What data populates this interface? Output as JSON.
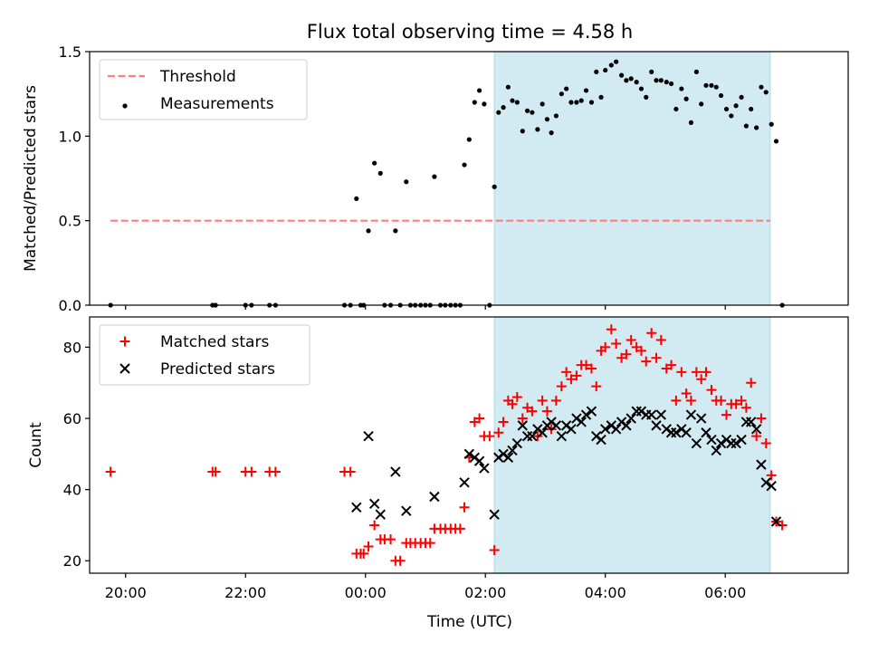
{
  "figure": {
    "title": "Flux total observing time = 4.58 h"
  },
  "chart_data": [
    {
      "type": "scatter",
      "ylabel": "Matched/Predicted stars",
      "xlim": [
        19.4,
        8.05
      ],
      "ylim": [
        0,
        1.5
      ],
      "yticks": [
        0.0,
        0.5,
        1.0,
        1.5
      ],
      "shaded_region": [
        2.15,
        6.75
      ],
      "threshold": {
        "value": 0.5,
        "x_range": [
          19.75,
          6.75
        ],
        "color": "#ff7f7f"
      },
      "legend": {
        "position": "top-left",
        "entries": [
          "Threshold",
          "Measurements"
        ]
      },
      "series": [
        {
          "name": "Measurements",
          "marker": "dot",
          "color": "#000000",
          "points": [
            [
              19.75,
              0.0
            ],
            [
              21.45,
              0.0
            ],
            [
              21.5,
              0.0
            ],
            [
              22.0,
              0.0
            ],
            [
              22.1,
              0.0
            ],
            [
              22.4,
              0.0
            ],
            [
              22.5,
              0.0
            ],
            [
              23.65,
              0.0
            ],
            [
              23.75,
              0.0
            ],
            [
              23.85,
              0.63
            ],
            [
              23.92,
              0.0
            ],
            [
              23.97,
              0.0
            ],
            [
              24.05,
              0.44
            ],
            [
              24.15,
              0.84
            ],
            [
              24.25,
              0.78
            ],
            [
              24.32,
              0.0
            ],
            [
              24.42,
              0.0
            ],
            [
              24.5,
              0.44
            ],
            [
              24.58,
              0.0
            ],
            [
              24.68,
              0.73
            ],
            [
              24.75,
              0.0
            ],
            [
              24.83,
              0.0
            ],
            [
              24.92,
              0.0
            ],
            [
              25.0,
              0.0
            ],
            [
              25.08,
              0.0
            ],
            [
              25.15,
              0.76
            ],
            [
              25.25,
              0.0
            ],
            [
              25.33,
              0.0
            ],
            [
              25.42,
              0.0
            ],
            [
              25.5,
              0.0
            ],
            [
              25.58,
              0.0
            ],
            [
              25.65,
              0.83
            ],
            [
              25.73,
              0.98
            ],
            [
              25.82,
              1.2
            ],
            [
              25.9,
              1.27
            ],
            [
              25.98,
              1.19
            ],
            [
              26.07,
              0.0
            ],
            [
              26.15,
              0.7
            ],
            [
              26.22,
              1.14
            ],
            [
              26.3,
              1.17
            ],
            [
              26.38,
              1.29
            ],
            [
              26.45,
              1.21
            ],
            [
              26.53,
              1.2
            ],
            [
              26.62,
              1.03
            ],
            [
              26.7,
              1.15
            ],
            [
              26.78,
              1.14
            ],
            [
              26.87,
              1.04
            ],
            [
              26.95,
              1.19
            ],
            [
              27.03,
              1.1
            ],
            [
              27.1,
              1.02
            ],
            [
              27.18,
              1.12
            ],
            [
              27.27,
              1.25
            ],
            [
              27.35,
              1.28
            ],
            [
              27.43,
              1.2
            ],
            [
              27.52,
              1.2
            ],
            [
              27.6,
              1.21
            ],
            [
              27.68,
              1.27
            ],
            [
              27.77,
              1.2
            ],
            [
              27.85,
              1.38
            ],
            [
              27.93,
              1.23
            ],
            [
              28.0,
              1.39
            ],
            [
              28.1,
              1.42
            ],
            [
              28.18,
              1.44
            ],
            [
              28.27,
              1.36
            ],
            [
              28.35,
              1.33
            ],
            [
              28.43,
              1.34
            ],
            [
              28.52,
              1.32
            ],
            [
              28.6,
              1.28
            ],
            [
              28.68,
              1.23
            ],
            [
              28.77,
              1.38
            ],
            [
              28.85,
              1.33
            ],
            [
              28.93,
              1.33
            ],
            [
              29.02,
              1.32
            ],
            [
              29.1,
              1.31
            ],
            [
              29.18,
              1.16
            ],
            [
              29.27,
              1.28
            ],
            [
              29.35,
              1.22
            ],
            [
              29.43,
              1.08
            ],
            [
              29.52,
              1.38
            ],
            [
              29.6,
              1.19
            ],
            [
              29.68,
              1.3
            ],
            [
              29.77,
              1.3
            ],
            [
              29.85,
              1.29
            ],
            [
              29.93,
              1.24
            ],
            [
              30.02,
              1.16
            ],
            [
              30.1,
              1.12
            ],
            [
              30.18,
              1.18
            ],
            [
              30.27,
              1.23
            ],
            [
              30.35,
              1.06
            ],
            [
              30.43,
              1.16
            ],
            [
              30.52,
              1.05
            ],
            [
              30.6,
              1.29
            ],
            [
              30.68,
              1.26
            ],
            [
              30.77,
              1.07
            ],
            [
              30.85,
              0.97
            ],
            [
              30.95,
              0.0
            ]
          ]
        }
      ]
    },
    {
      "type": "scatter",
      "xlabel": "Time (UTC)",
      "ylabel": "Count",
      "xlim": [
        19.4,
        8.05
      ],
      "ylim": [
        16.5,
        88.5
      ],
      "yticks": [
        20,
        40,
        60,
        80
      ],
      "xticks": [
        "20:00",
        "22:00",
        "00:00",
        "02:00",
        "04:00",
        "06:00"
      ],
      "xtick_values": [
        20,
        22,
        24,
        26,
        28,
        30
      ],
      "shaded_region": [
        2.15,
        6.75
      ],
      "legend": {
        "position": "top-left",
        "entries": [
          "Matched stars",
          "Predicted stars"
        ]
      },
      "series": [
        {
          "name": "Matched stars",
          "marker": "plus",
          "color": "#ff0000",
          "points": [
            [
              19.75,
              45
            ],
            [
              21.45,
              45
            ],
            [
              21.5,
              45
            ],
            [
              22.0,
              45
            ],
            [
              22.1,
              45
            ],
            [
              22.4,
              45
            ],
            [
              22.5,
              45
            ],
            [
              23.65,
              45
            ],
            [
              23.75,
              45
            ],
            [
              23.85,
              22
            ],
            [
              23.92,
              22
            ],
            [
              23.97,
              22
            ],
            [
              24.05,
              24
            ],
            [
              24.15,
              30
            ],
            [
              24.25,
              26
            ],
            [
              24.32,
              26
            ],
            [
              24.42,
              26
            ],
            [
              24.5,
              20
            ],
            [
              24.58,
              20
            ],
            [
              24.68,
              25
            ],
            [
              24.75,
              25
            ],
            [
              24.83,
              25
            ],
            [
              24.92,
              25
            ],
            [
              25.0,
              25
            ],
            [
              25.08,
              25
            ],
            [
              25.15,
              29
            ],
            [
              25.25,
              29
            ],
            [
              25.33,
              29
            ],
            [
              25.42,
              29
            ],
            [
              25.5,
              29
            ],
            [
              25.58,
              29
            ],
            [
              25.65,
              35
            ],
            [
              25.73,
              49
            ],
            [
              25.82,
              59
            ],
            [
              25.9,
              60
            ],
            [
              25.98,
              55
            ],
            [
              26.07,
              55
            ],
            [
              26.15,
              23
            ],
            [
              26.22,
              56
            ],
            [
              26.3,
              59
            ],
            [
              26.38,
              65
            ],
            [
              26.45,
              64
            ],
            [
              26.53,
              66
            ],
            [
              26.62,
              60
            ],
            [
              26.7,
              63
            ],
            [
              26.78,
              62
            ],
            [
              26.87,
              55
            ],
            [
              26.95,
              65
            ],
            [
              27.03,
              62
            ],
            [
              27.1,
              57
            ],
            [
              27.18,
              65
            ],
            [
              27.27,
              69
            ],
            [
              27.35,
              73
            ],
            [
              27.43,
              71
            ],
            [
              27.52,
              72
            ],
            [
              27.6,
              75
            ],
            [
              27.68,
              75
            ],
            [
              27.77,
              74
            ],
            [
              27.85,
              69
            ],
            [
              27.93,
              79
            ],
            [
              28.0,
              80
            ],
            [
              28.1,
              85
            ],
            [
              28.18,
              81
            ],
            [
              28.27,
              77
            ],
            [
              28.35,
              78
            ],
            [
              28.43,
              82
            ],
            [
              28.52,
              80
            ],
            [
              28.6,
              79
            ],
            [
              28.68,
              76
            ],
            [
              28.77,
              84
            ],
            [
              28.85,
              77
            ],
            [
              28.93,
              82
            ],
            [
              29.02,
              74
            ],
            [
              29.1,
              75
            ],
            [
              29.18,
              65
            ],
            [
              29.27,
              73
            ],
            [
              29.35,
              67
            ],
            [
              29.43,
              65
            ],
            [
              29.52,
              73
            ],
            [
              29.6,
              71
            ],
            [
              29.68,
              73
            ],
            [
              29.77,
              68
            ],
            [
              29.85,
              65
            ],
            [
              29.93,
              65
            ],
            [
              30.02,
              61
            ],
            [
              30.1,
              64
            ],
            [
              30.18,
              64
            ],
            [
              30.27,
              65
            ],
            [
              30.35,
              63
            ],
            [
              30.43,
              70
            ],
            [
              30.52,
              55
            ],
            [
              30.6,
              60
            ],
            [
              30.68,
              53
            ],
            [
              30.77,
              44
            ],
            [
              30.85,
              31
            ],
            [
              30.95,
              30
            ]
          ]
        },
        {
          "name": "Predicted stars",
          "marker": "cross",
          "color": "#000000",
          "points": [
            [
              23.85,
              35
            ],
            [
              24.05,
              55
            ],
            [
              24.15,
              36
            ],
            [
              24.25,
              33
            ],
            [
              24.5,
              45
            ],
            [
              24.68,
              34
            ],
            [
              25.15,
              38
            ],
            [
              25.65,
              42
            ],
            [
              25.73,
              50
            ],
            [
              25.82,
              49
            ],
            [
              25.9,
              48
            ],
            [
              25.98,
              46
            ],
            [
              26.15,
              33
            ],
            [
              26.22,
              49
            ],
            [
              26.3,
              50
            ],
            [
              26.38,
              49
            ],
            [
              26.45,
              51
            ],
            [
              26.53,
              53
            ],
            [
              26.62,
              58
            ],
            [
              26.7,
              55
            ],
            [
              26.78,
              55
            ],
            [
              26.87,
              57
            ],
            [
              26.95,
              56
            ],
            [
              27.03,
              58
            ],
            [
              27.1,
              59
            ],
            [
              27.18,
              58
            ],
            [
              27.27,
              55
            ],
            [
              27.35,
              58
            ],
            [
              27.43,
              57
            ],
            [
              27.52,
              60
            ],
            [
              27.6,
              59
            ],
            [
              27.68,
              61
            ],
            [
              27.77,
              62
            ],
            [
              27.85,
              55
            ],
            [
              27.93,
              54
            ],
            [
              28.0,
              57
            ],
            [
              28.1,
              58
            ],
            [
              28.18,
              57
            ],
            [
              28.27,
              59
            ],
            [
              28.35,
              58
            ],
            [
              28.43,
              60
            ],
            [
              28.52,
              62
            ],
            [
              28.6,
              62
            ],
            [
              28.68,
              61
            ],
            [
              28.77,
              61
            ],
            [
              28.85,
              58
            ],
            [
              28.93,
              61
            ],
            [
              29.02,
              57
            ],
            [
              29.1,
              56
            ],
            [
              29.18,
              56
            ],
            [
              29.27,
              57
            ],
            [
              29.35,
              56
            ],
            [
              29.43,
              61
            ],
            [
              29.52,
              53
            ],
            [
              29.6,
              60
            ],
            [
              29.68,
              56
            ],
            [
              29.77,
              54
            ],
            [
              29.85,
              51
            ],
            [
              29.93,
              53
            ],
            [
              30.02,
              54
            ],
            [
              30.1,
              53
            ],
            [
              30.18,
              53
            ],
            [
              30.27,
              54
            ],
            [
              30.35,
              59
            ],
            [
              30.43,
              59
            ],
            [
              30.52,
              57
            ],
            [
              30.6,
              47
            ],
            [
              30.68,
              42
            ],
            [
              30.77,
              41
            ],
            [
              30.85,
              31
            ]
          ]
        }
      ]
    }
  ]
}
